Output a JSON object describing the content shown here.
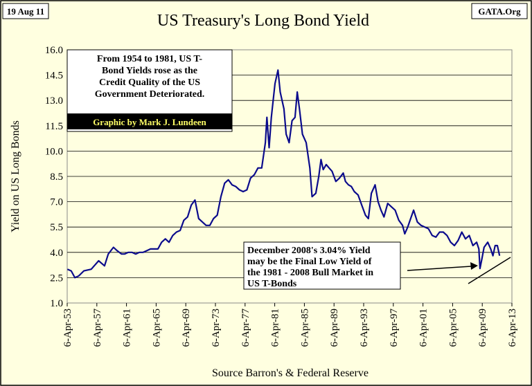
{
  "date_tag": "19 Aug 11",
  "site_tag": "GATA.Org",
  "colors": {
    "background": "#ffffe0",
    "series": "#0b0b8c",
    "credit_bg": "#000000",
    "credit_text": "#ffff66"
  },
  "chart_data": {
    "type": "line",
    "title": "US Treasury's Long Bond Yield",
    "xlabel": "Source Barron's & Federal Reserve",
    "ylabel": "Yield on US Long Bonds",
    "ylim": [
      1.0,
      16.0
    ],
    "yticks": [
      "1.0",
      "2.5",
      "4.0",
      "5.5",
      "7.0",
      "8.5",
      "10.0",
      "11.5",
      "13.0",
      "14.5",
      "16.0"
    ],
    "xlim": [
      "1953-04-06",
      "2013-04-06"
    ],
    "xticks": [
      "6-Apr-53",
      "6-Apr-57",
      "6-Apr-61",
      "6-Apr-65",
      "6-Apr-69",
      "6-Apr-73",
      "6-Apr-77",
      "6-Apr-81",
      "6-Apr-85",
      "6-Apr-89",
      "6-Apr-93",
      "6-Apr-97",
      "6-Apr-01",
      "6-Apr-05",
      "6-Apr-09",
      "6-Apr-13"
    ],
    "grid": "horizontal",
    "series": [
      {
        "x": [
          1953.3,
          1953.8,
          1954.3,
          1954.8,
          1955.5,
          1956.5,
          1957.5,
          1958.3,
          1958.8,
          1959.5,
          1960.0,
          1960.6,
          1961.0,
          1961.5,
          1962.0,
          1962.5,
          1963.0,
          1963.5,
          1964.0,
          1964.5,
          1965.0,
          1965.5,
          1966.0,
          1966.5,
          1967.0,
          1967.5,
          1968.0,
          1968.5,
          1969.0,
          1969.5,
          1970.0,
          1970.5,
          1971.0,
          1971.5,
          1972.0,
          1972.5,
          1973.0,
          1973.5,
          1974.0,
          1974.5,
          1975.0,
          1975.5,
          1976.0,
          1976.5,
          1977.0,
          1977.5,
          1978.0,
          1978.5,
          1979.0,
          1979.5,
          1980.0,
          1980.2,
          1980.5,
          1980.8,
          1981.0,
          1981.3,
          1981.7,
          1982.0,
          1982.5,
          1982.8,
          1983.2,
          1983.6,
          1984.0,
          1984.3,
          1984.6,
          1985.0,
          1985.5,
          1986.0,
          1986.3,
          1986.8,
          1987.2,
          1987.5,
          1987.8,
          1988.2,
          1988.6,
          1989.0,
          1989.5,
          1990.0,
          1990.5,
          1990.8,
          1991.2,
          1991.6,
          1992.0,
          1992.5,
          1993.0,
          1993.5,
          1993.9,
          1994.3,
          1994.8,
          1995.2,
          1995.6,
          1996.0,
          1996.5,
          1997.0,
          1997.5,
          1998.0,
          1998.5,
          1998.8,
          1999.2,
          1999.6,
          2000.0,
          2000.5,
          2001.0,
          2001.5,
          2002.0,
          2002.5,
          2003.0,
          2003.5,
          2004.0,
          2004.5,
          2005.0,
          2005.5,
          2006.0,
          2006.5,
          2007.0,
          2007.5,
          2008.0,
          2008.5,
          2008.8,
          2008.95,
          2009.2,
          2009.5,
          2010.0,
          2010.4,
          2010.7,
          2011.0,
          2011.3,
          2011.6
        ],
        "values": [
          3.0,
          2.9,
          2.5,
          2.6,
          2.9,
          3.0,
          3.5,
          3.2,
          3.9,
          4.3,
          4.1,
          3.9,
          3.9,
          4.0,
          4.0,
          3.9,
          4.0,
          4.0,
          4.1,
          4.2,
          4.2,
          4.2,
          4.6,
          4.8,
          4.6,
          5.0,
          5.2,
          5.3,
          5.9,
          6.1,
          6.8,
          7.1,
          6.0,
          5.8,
          5.6,
          5.6,
          6.0,
          6.2,
          7.3,
          8.1,
          8.3,
          8.0,
          7.9,
          7.7,
          7.6,
          7.7,
          8.4,
          8.6,
          9.0,
          9.0,
          10.5,
          12.0,
          10.2,
          12.0,
          12.8,
          14.0,
          14.8,
          13.5,
          12.5,
          11.0,
          10.5,
          11.8,
          12.0,
          13.5,
          12.5,
          11.0,
          10.5,
          9.0,
          7.3,
          7.5,
          8.5,
          9.5,
          8.9,
          9.2,
          9.0,
          8.8,
          8.2,
          8.4,
          8.7,
          8.2,
          8.0,
          7.9,
          7.6,
          7.4,
          6.8,
          6.2,
          6.0,
          7.5,
          8.0,
          7.0,
          6.5,
          6.1,
          6.9,
          6.7,
          6.5,
          5.9,
          5.6,
          5.1,
          5.5,
          6.0,
          6.5,
          5.8,
          5.6,
          5.5,
          5.4,
          5.0,
          4.9,
          5.2,
          5.2,
          5.0,
          4.6,
          4.4,
          4.7,
          5.2,
          4.8,
          5.0,
          4.4,
          4.6,
          4.2,
          3.04,
          3.6,
          4.3,
          4.6,
          4.2,
          3.8,
          4.4,
          4.4,
          3.8
        ]
      }
    ],
    "annotations": {
      "top_left": [
        "From 1954 to 1981, US T-",
        "Bond Yields rose as the",
        "Credit Quality of the US",
        "Government Deteriorated."
      ],
      "credit": "Graphic by Mark J. Lundeen",
      "bottom_right": [
        "December 2008's 3.04% Yield",
        "may be the Final Low Yield of",
        "the 1981 - 2008 Bull Market in",
        "US T-Bonds"
      ]
    }
  }
}
